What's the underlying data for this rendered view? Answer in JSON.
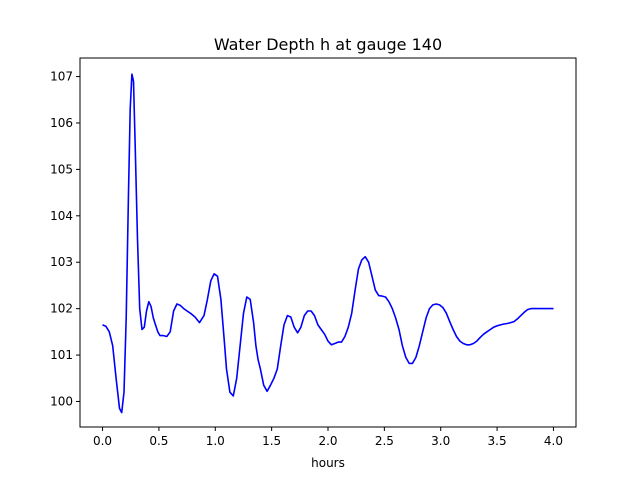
{
  "chart_data": {
    "type": "line",
    "title": "Water Depth h at gauge 140",
    "xlabel": "hours",
    "ylabel": "",
    "xlim": [
      -0.2,
      4.2
    ],
    "ylim": [
      99.45,
      107.4
    ],
    "xticks": [
      0.0,
      0.5,
      1.0,
      1.5,
      2.0,
      2.5,
      3.0,
      3.5,
      4.0
    ],
    "xtick_labels": [
      "0.0",
      "0.5",
      "1.0",
      "1.5",
      "2.0",
      "2.5",
      "3.0",
      "3.5",
      "4.0"
    ],
    "yticks": [
      100,
      101,
      102,
      103,
      104,
      105,
      106,
      107
    ],
    "ytick_labels": [
      "100",
      "101",
      "102",
      "103",
      "104",
      "105",
      "106",
      "107"
    ],
    "grid": false,
    "series": [
      {
        "color": "#0000ff",
        "x": [
          0.0,
          0.03,
          0.06,
          0.09,
          0.12,
          0.15,
          0.17,
          0.19,
          0.21,
          0.23,
          0.245,
          0.26,
          0.275,
          0.29,
          0.31,
          0.33,
          0.35,
          0.37,
          0.39,
          0.41,
          0.43,
          0.45,
          0.47,
          0.49,
          0.51,
          0.54,
          0.57,
          0.6,
          0.63,
          0.66,
          0.69,
          0.72,
          0.75,
          0.78,
          0.82,
          0.86,
          0.9,
          0.93,
          0.96,
          0.99,
          1.02,
          1.05,
          1.08,
          1.1,
          1.13,
          1.16,
          1.19,
          1.22,
          1.25,
          1.28,
          1.31,
          1.34,
          1.36,
          1.38,
          1.4,
          1.43,
          1.46,
          1.49,
          1.52,
          1.55,
          1.58,
          1.61,
          1.64,
          1.67,
          1.7,
          1.73,
          1.76,
          1.79,
          1.82,
          1.85,
          1.88,
          1.91,
          1.94,
          1.97,
          2.0,
          2.03,
          2.06,
          2.09,
          2.12,
          2.15,
          2.18,
          2.21,
          2.24,
          2.27,
          2.3,
          2.33,
          2.36,
          2.39,
          2.42,
          2.45,
          2.48,
          2.51,
          2.54,
          2.57,
          2.6,
          2.63,
          2.66,
          2.69,
          2.72,
          2.75,
          2.78,
          2.81,
          2.84,
          2.87,
          2.9,
          2.93,
          2.96,
          2.99,
          3.02,
          3.05,
          3.08,
          3.11,
          3.14,
          3.17,
          3.2,
          3.23,
          3.26,
          3.29,
          3.32,
          3.35,
          3.38,
          3.41,
          3.44,
          3.47,
          3.5,
          3.53,
          3.56,
          3.59,
          3.62,
          3.65,
          3.68,
          3.71,
          3.74,
          3.77,
          3.8,
          3.83,
          3.86,
          3.89,
          3.92,
          3.95,
          3.98,
          4.0
        ],
        "values": [
          101.65,
          101.62,
          101.5,
          101.2,
          100.5,
          99.85,
          99.76,
          100.2,
          101.8,
          104.5,
          106.3,
          107.05,
          106.9,
          105.5,
          103.5,
          102.0,
          101.55,
          101.6,
          101.95,
          102.15,
          102.05,
          101.8,
          101.65,
          101.5,
          101.42,
          101.42,
          101.4,
          101.5,
          101.95,
          102.1,
          102.07,
          102.0,
          101.95,
          101.9,
          101.82,
          101.7,
          101.85,
          102.2,
          102.6,
          102.75,
          102.7,
          102.2,
          101.3,
          100.7,
          100.2,
          100.12,
          100.5,
          101.2,
          101.9,
          102.25,
          102.2,
          101.7,
          101.2,
          100.9,
          100.7,
          100.35,
          100.22,
          100.35,
          100.5,
          100.7,
          101.2,
          101.65,
          101.85,
          101.82,
          101.6,
          101.48,
          101.6,
          101.85,
          101.95,
          101.95,
          101.85,
          101.65,
          101.55,
          101.45,
          101.3,
          101.22,
          101.25,
          101.28,
          101.28,
          101.4,
          101.6,
          101.9,
          102.4,
          102.85,
          103.05,
          103.12,
          103.0,
          102.7,
          102.4,
          102.28,
          102.27,
          102.25,
          102.15,
          102.0,
          101.8,
          101.55,
          101.2,
          100.95,
          100.82,
          100.82,
          100.95,
          101.2,
          101.5,
          101.8,
          102.0,
          102.08,
          102.1,
          102.08,
          102.02,
          101.9,
          101.72,
          101.55,
          101.4,
          101.3,
          101.25,
          101.22,
          101.22,
          101.25,
          101.3,
          101.38,
          101.45,
          101.5,
          101.55,
          101.6,
          101.63,
          101.65,
          101.67,
          101.68,
          101.7,
          101.72,
          101.78,
          101.85,
          101.92,
          101.98,
          102.0,
          102.0,
          102.0,
          102.0,
          102.0,
          102.0,
          102.0,
          102.0
        ]
      }
    ]
  }
}
